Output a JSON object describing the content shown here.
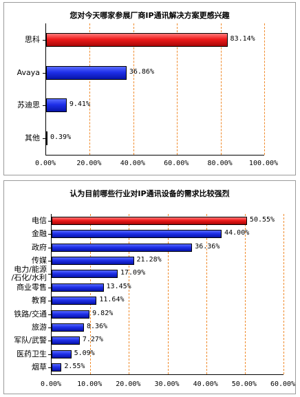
{
  "chart_data": [
    {
      "type": "bar",
      "orientation": "horizontal",
      "title": "您对今天哪家参展厂商IP通讯解决方案更感兴趣",
      "categories": [
        "思科",
        "Avaya",
        "苏迪思",
        "其他"
      ],
      "values": [
        83.14,
        36.86,
        9.41,
        0.39
      ],
      "value_labels": [
        "83.14%",
        "36.86%",
        "9.41%",
        "0.39%"
      ],
      "highlight_index": 0,
      "xlim": [
        0,
        100
      ],
      "xticks": [
        "0.00%",
        "20.00%",
        "40.00%",
        "60.00%",
        "80.00%",
        "100.00%"
      ],
      "grid": true
    },
    {
      "type": "bar",
      "orientation": "horizontal",
      "title": "认为目前哪些行业对IP通讯设备的需求比较强烈",
      "categories": [
        "电信",
        "金融",
        "政府",
        "传媒",
        "电力/能源\n/石化/水利",
        "商业零售",
        "教育",
        "铁路/交通",
        "旅游",
        "军队/武警",
        "医药卫生",
        "烟草"
      ],
      "values": [
        50.55,
        44.0,
        36.36,
        21.28,
        17.09,
        13.45,
        11.64,
        9.82,
        8.36,
        7.27,
        5.09,
        2.55
      ],
      "value_labels": [
        "50.55%",
        "44.00%",
        "36.36%",
        "21.28%",
        "17.09%",
        "13.45%",
        "11.64%",
        "9.82%",
        "8.36%",
        "7.27%",
        "5.09%",
        "2.55%"
      ],
      "highlight_index": 0,
      "xlim": [
        0,
        60
      ],
      "xticks": [
        "0.00%",
        "10.00%",
        "20.00%",
        "30.00%",
        "40.00%",
        "50.00%",
        "60.00%"
      ],
      "grid": true
    }
  ],
  "colors": {
    "highlight": "#e81414",
    "bar": "#1424e0",
    "grid": "#f08a2a"
  }
}
